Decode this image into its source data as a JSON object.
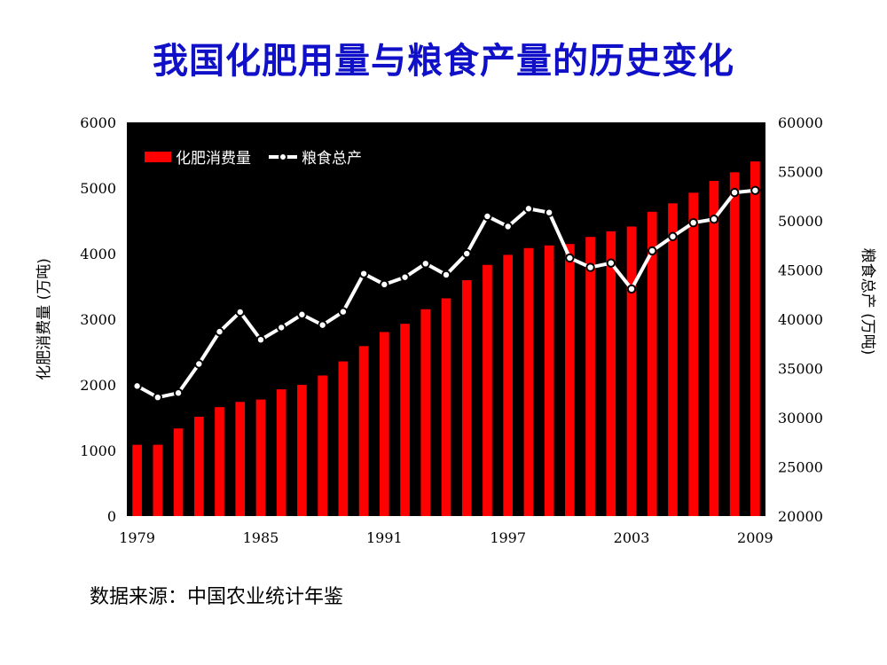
{
  "title": "我国化肥用量与粮食产量的历史变化",
  "source_note": "数据来源：中国农业统计年鉴",
  "chart_data": {
    "type": "bar+line",
    "background_color": "#000000",
    "years": [
      1979,
      1980,
      1981,
      1982,
      1983,
      1984,
      1985,
      1986,
      1987,
      1988,
      1989,
      1990,
      1991,
      1992,
      1993,
      1994,
      1995,
      1996,
      1997,
      1998,
      1999,
      2000,
      2001,
      2002,
      2003,
      2004,
      2005,
      2006,
      2007,
      2008,
      2009
    ],
    "x_tick_labels": [
      "1979",
      "1985",
      "1991",
      "1997",
      "2003",
      "2009"
    ],
    "series": [
      {
        "name": "化肥消费量",
        "type": "bar",
        "axis": "left",
        "color": "#ff0000",
        "values": [
          1086,
          1086,
          1335,
          1513,
          1660,
          1740,
          1776,
          1931,
          1999,
          2142,
          2357,
          2590,
          2805,
          2930,
          3152,
          3318,
          3594,
          3828,
          3981,
          4084,
          4124,
          4146,
          4254,
          4339,
          4412,
          4637,
          4766,
          4928,
          5108,
          5239,
          5404
        ]
      },
      {
        "name": "粮食总产",
        "type": "line",
        "axis": "right",
        "color": "#ffffff",
        "values": [
          33212,
          32056,
          32502,
          35450,
          38728,
          40731,
          37911,
          39151,
          40473,
          39404,
          40755,
          44624,
          43529,
          44266,
          45649,
          44510,
          46662,
          50454,
          49417,
          51230,
          50839,
          46218,
          45264,
          45706,
          43070,
          46947,
          48402,
          49804,
          50160,
          52871,
          53082
        ]
      }
    ],
    "y_left": {
      "label": "化肥消费量 (万吨)",
      "min": 0,
      "max": 6000,
      "ticks": [
        0,
        1000,
        2000,
        3000,
        4000,
        5000,
        6000
      ]
    },
    "y_right": {
      "label": "粮食总产 (万吨)",
      "min": 20000,
      "max": 60000,
      "ticks": [
        20000,
        25000,
        30000,
        35000,
        40000,
        45000,
        50000,
        55000,
        60000
      ]
    },
    "legend_position": "top-left"
  }
}
